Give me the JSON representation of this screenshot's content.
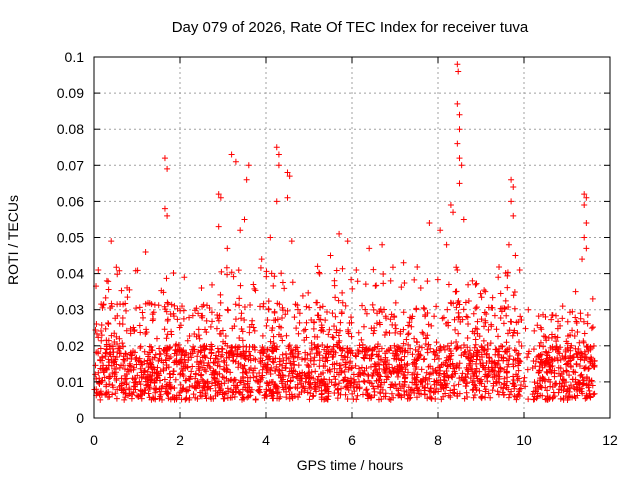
{
  "chart_data": {
    "type": "scatter",
    "title": "Day 079 of 2026, Rate Of TEC Index for receiver tuva",
    "xlabel": "GPS time / hours",
    "ylabel": "ROTI / TECUs",
    "xlim": [
      0,
      12
    ],
    "ylim": [
      0,
      0.1
    ],
    "grid": true,
    "marker": "+",
    "color": "#ff0000",
    "x_ticks": [
      "0",
      "2",
      "4",
      "6",
      "8",
      "10",
      "12"
    ],
    "y_ticks": [
      "0",
      "0.01",
      "0.02",
      "0.03",
      "0.04",
      "0.05",
      "0.06",
      "0.07",
      "0.08",
      "0.09",
      "0.1"
    ],
    "data_extent_hours": [
      0,
      11.65
    ],
    "baseline_band": [
      0.005,
      0.02
    ],
    "spikes": [
      {
        "x": 0.1,
        "y": 0.041
      },
      {
        "x": 0.4,
        "y": 0.049
      },
      {
        "x": 1.2,
        "y": 0.046
      },
      {
        "x": 1.65,
        "y": 0.072
      },
      {
        "x": 1.7,
        "y": 0.069
      },
      {
        "x": 1.65,
        "y": 0.058
      },
      {
        "x": 1.7,
        "y": 0.056
      },
      {
        "x": 2.9,
        "y": 0.062
      },
      {
        "x": 2.95,
        "y": 0.061
      },
      {
        "x": 2.9,
        "y": 0.053
      },
      {
        "x": 3.2,
        "y": 0.073
      },
      {
        "x": 3.3,
        "y": 0.071
      },
      {
        "x": 3.5,
        "y": 0.055
      },
      {
        "x": 3.6,
        "y": 0.07
      },
      {
        "x": 3.55,
        "y": 0.066
      },
      {
        "x": 4.25,
        "y": 0.075
      },
      {
        "x": 4.3,
        "y": 0.073
      },
      {
        "x": 4.3,
        "y": 0.07
      },
      {
        "x": 4.25,
        "y": 0.06
      },
      {
        "x": 4.5,
        "y": 0.068
      },
      {
        "x": 4.55,
        "y": 0.067
      },
      {
        "x": 4.5,
        "y": 0.061
      },
      {
        "x": 4.6,
        "y": 0.049
      },
      {
        "x": 5.7,
        "y": 0.051
      },
      {
        "x": 5.9,
        "y": 0.049
      },
      {
        "x": 6.4,
        "y": 0.047
      },
      {
        "x": 6.7,
        "y": 0.048
      },
      {
        "x": 7.8,
        "y": 0.054
      },
      {
        "x": 8.05,
        "y": 0.052
      },
      {
        "x": 8.3,
        "y": 0.059
      },
      {
        "x": 8.35,
        "y": 0.057
      },
      {
        "x": 8.45,
        "y": 0.098
      },
      {
        "x": 8.47,
        "y": 0.096
      },
      {
        "x": 8.45,
        "y": 0.087
      },
      {
        "x": 8.5,
        "y": 0.084
      },
      {
        "x": 8.5,
        "y": 0.08
      },
      {
        "x": 8.45,
        "y": 0.076
      },
      {
        "x": 8.5,
        "y": 0.072
      },
      {
        "x": 8.55,
        "y": 0.07
      },
      {
        "x": 8.5,
        "y": 0.065
      },
      {
        "x": 8.6,
        "y": 0.055
      },
      {
        "x": 9.7,
        "y": 0.066
      },
      {
        "x": 9.75,
        "y": 0.064
      },
      {
        "x": 9.7,
        "y": 0.06
      },
      {
        "x": 9.75,
        "y": 0.056
      },
      {
        "x": 9.65,
        "y": 0.048
      },
      {
        "x": 9.8,
        "y": 0.045
      },
      {
        "x": 9.9,
        "y": 0.041
      },
      {
        "x": 11.4,
        "y": 0.062
      },
      {
        "x": 11.45,
        "y": 0.061
      },
      {
        "x": 11.4,
        "y": 0.059
      },
      {
        "x": 11.45,
        "y": 0.054
      },
      {
        "x": 11.4,
        "y": 0.05
      },
      {
        "x": 11.45,
        "y": 0.047
      },
      {
        "x": 11.35,
        "y": 0.044
      },
      {
        "x": 0.3,
        "y": 0.038
      },
      {
        "x": 2.1,
        "y": 0.039
      },
      {
        "x": 2.5,
        "y": 0.036
      },
      {
        "x": 3.1,
        "y": 0.047
      },
      {
        "x": 3.4,
        "y": 0.052
      },
      {
        "x": 3.9,
        "y": 0.044
      },
      {
        "x": 4.1,
        "y": 0.05
      },
      {
        "x": 5.2,
        "y": 0.042
      },
      {
        "x": 5.5,
        "y": 0.045
      },
      {
        "x": 6.1,
        "y": 0.041
      },
      {
        "x": 6.9,
        "y": 0.038
      },
      {
        "x": 7.2,
        "y": 0.043
      },
      {
        "x": 7.6,
        "y": 0.036
      },
      {
        "x": 8.2,
        "y": 0.048
      },
      {
        "x": 8.8,
        "y": 0.038
      },
      {
        "x": 9.1,
        "y": 0.035
      },
      {
        "x": 9.4,
        "y": 0.039
      },
      {
        "x": 10.1,
        "y": 0.03
      },
      {
        "x": 10.5,
        "y": 0.028
      },
      {
        "x": 10.9,
        "y": 0.031
      },
      {
        "x": 11.2,
        "y": 0.035
      },
      {
        "x": 11.6,
        "y": 0.033
      }
    ]
  }
}
